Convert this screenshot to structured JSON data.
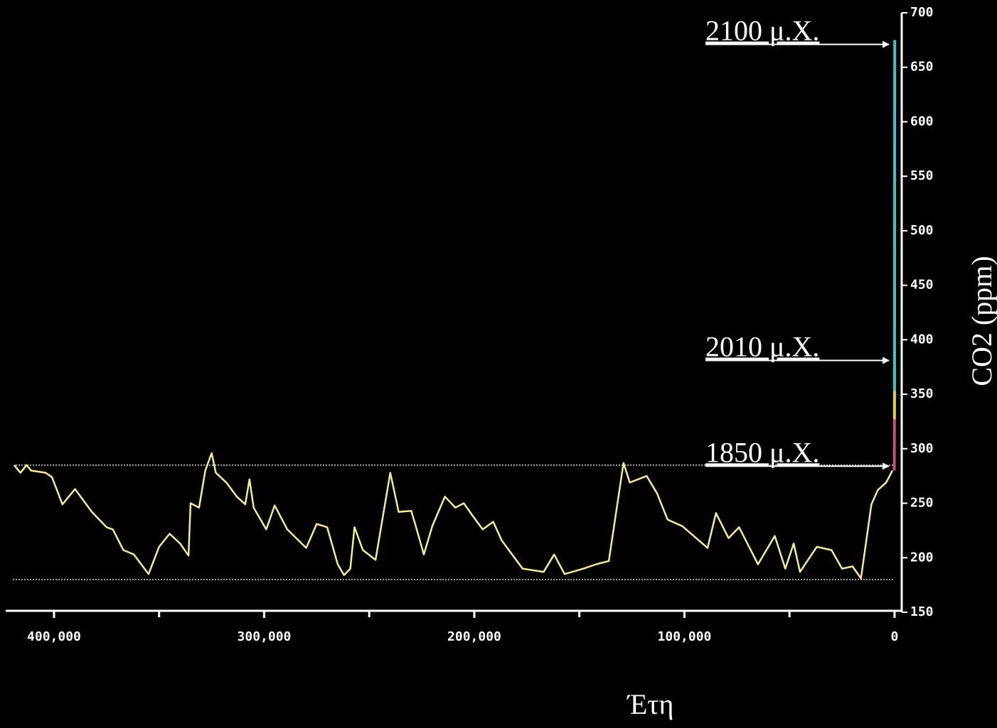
{
  "chart_data": {
    "type": "line",
    "x_label": "Έτη",
    "y_label": "CO2 (ppm)",
    "xlim": [
      423000,
      -3400
    ],
    "ylim": [
      150,
      700
    ],
    "xticks": [
      {
        "value": 400000,
        "label": "400,000"
      },
      {
        "value": 300000,
        "label": "300,000"
      },
      {
        "value": 200000,
        "label": "200,000"
      },
      {
        "value": 100000,
        "label": "100,000"
      },
      0
    ],
    "xticks_minor": [
      350000,
      250000,
      150000,
      50000
    ],
    "yticks": [
      150,
      200,
      250,
      300,
      350,
      400,
      450,
      500,
      550,
      600,
      650,
      700
    ],
    "reference_lines": [
      285,
      180
    ],
    "series": [
      {
        "color": "#f3ee8c",
        "x": [
          419000,
          416000,
          413000,
          411000,
          404000,
          401000,
          396000,
          390000,
          382000,
          375000,
          372000,
          367000,
          362000,
          355000,
          350000,
          345000,
          340000,
          336000,
          335000,
          331000,
          328000,
          325000,
          323000,
          318000,
          313000,
          309000,
          307000,
          305000,
          299000,
          295000,
          289000,
          280000,
          275000,
          270000,
          265000,
          262000,
          259000,
          257000,
          253000,
          247000,
          240000,
          236000,
          230000,
          228000,
          224000,
          220000,
          214000,
          209000,
          205000,
          201000,
          196000,
          191000,
          187000,
          182000,
          177000,
          167000,
          162000,
          157000,
          148000,
          142000,
          136000,
          129000,
          126000,
          118000,
          113000,
          108000,
          101000,
          89000,
          85000,
          79000,
          74000,
          65000,
          57000,
          52000,
          48000,
          45000,
          37000,
          30000,
          25000,
          20000,
          16000,
          11000,
          8000,
          4000,
          1000
        ],
        "values": [
          285,
          278,
          285,
          280,
          278,
          274,
          249,
          263,
          242,
          228,
          226,
          207,
          203,
          185,
          210,
          222,
          213,
          202,
          250,
          246,
          280,
          296,
          278,
          269,
          256,
          249,
          272,
          246,
          226,
          248,
          226,
          209,
          231,
          228,
          194,
          184,
          190,
          228,
          207,
          198,
          278,
          242,
          243,
          230,
          203,
          229,
          256,
          246,
          250,
          239,
          226,
          233,
          216,
          203,
          190,
          187,
          203,
          185,
          190,
          194,
          197,
          287,
          269,
          275,
          259,
          235,
          229,
          209,
          241,
          218,
          228,
          194,
          220,
          190,
          213,
          187,
          210,
          207,
          190,
          192,
          181,
          249,
          262,
          269,
          280
        ]
      },
      {
        "color": "#c4517c",
        "x": [
          160,
          60
        ],
        "values": [
          280,
          327
        ]
      },
      {
        "color": "#e6cf3c",
        "x": [
          60,
          20
        ],
        "values": [
          327,
          353
        ]
      },
      {
        "color": "#3fc4c6",
        "x": [
          20,
          -90
        ],
        "values": [
          353,
          675
        ]
      }
    ],
    "annotations": [
      {
        "text": "2100 μ.Χ.",
        "value": 671
      },
      {
        "text": "2010 μ.Χ.",
        "value": 381
      },
      {
        "text": "1850 μ.Χ.",
        "value": 284
      }
    ]
  }
}
